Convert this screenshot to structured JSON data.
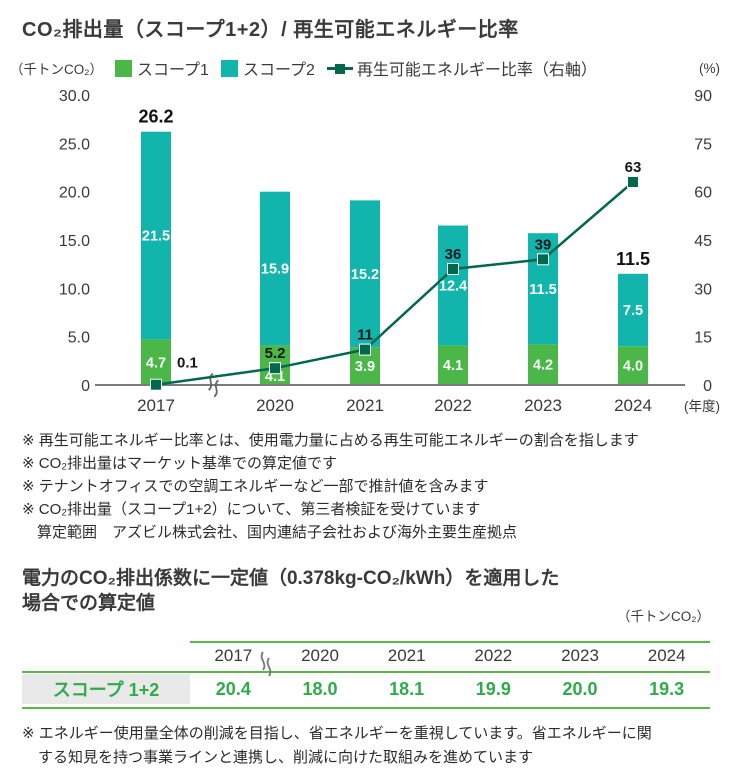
{
  "chart": {
    "title": "CO₂排出量（スコープ1+2）/ 再生可能エネルギー比率",
    "left_unit": "（千トンCO₂）",
    "right_unit": "(%)",
    "x_suffix": "(年度)"
  },
  "chart_data": {
    "type": "bar",
    "subtype": "stacked-bar-with-line",
    "title": "CO₂排出量（スコープ1+2）/ 再生可能エネルギー比率",
    "categories": [
      "2017",
      "2020",
      "2021",
      "2022",
      "2023",
      "2024"
    ],
    "x_axis_note": "(年度)",
    "axis_break_between": [
      "2017",
      "2020"
    ],
    "left_axis": {
      "unit": "（千トンCO₂）",
      "min": 0,
      "max": 30,
      "ticks": [
        "30.0",
        "25.0",
        "20.0",
        "15.0",
        "10.0",
        "5.0",
        "0"
      ]
    },
    "right_axis": {
      "unit": "(%)",
      "min": 0,
      "max": 90,
      "ticks": [
        "90",
        "75",
        "60",
        "45",
        "30",
        "15",
        "0"
      ]
    },
    "series": [
      {
        "name": "スコープ1",
        "type": "bar",
        "stack": true,
        "color": "#4bb748",
        "values": [
          4.7,
          4.1,
          3.9,
          4.1,
          4.2,
          4.0
        ],
        "labels": [
          "4.7",
          "4.1",
          "3.9",
          "4.1",
          "4.2",
          "4.0"
        ]
      },
      {
        "name": "スコープ2",
        "type": "bar",
        "stack": true,
        "color": "#12b5ab",
        "values": [
          21.5,
          15.9,
          15.2,
          12.4,
          11.5,
          7.5
        ],
        "labels": [
          "21.5",
          "15.9",
          "15.2",
          "12.4",
          "11.5",
          "7.5"
        ]
      },
      {
        "name": "再生可能エネルギー比率（右軸）",
        "type": "line",
        "axis": "right",
        "marker": "square",
        "color": "#00684d",
        "values": [
          0.1,
          5.2,
          11,
          36,
          39,
          63
        ],
        "labels": [
          "0.1",
          "5.2",
          "11",
          "36",
          "39",
          "63"
        ]
      }
    ],
    "total_labels": {
      "2017": "26.2",
      "2024": "11.5"
    },
    "legend_position": "top",
    "grid": false
  },
  "notes": [
    "※ 再生可能エネルギー比率とは、使用電力量に占める再生可能エネルギーの割合を指します",
    "※ CO₂排出量はマーケット基準での算定値です",
    "※ テナントオフィスでの空調エネルギーなど一部で推計値を含みます",
    "※ CO₂排出量（スコープ1+2）について、第三者検証を受けています",
    "算定範囲　アズビル株式会社、国内連結子会社および海外主要生産拠点"
  ],
  "section2": {
    "title_lines": [
      "電力のCO₂排出係数に一定値（0.378kg-CO₂/kWh）を適用した",
      "場合での算定値"
    ],
    "unit": "（千トンCO₂）",
    "table": {
      "years": [
        "2017",
        "2020",
        "2021",
        "2022",
        "2023",
        "2024"
      ],
      "row_label": "スコープ 1+2",
      "values": [
        "20.4",
        "18.0",
        "18.1",
        "19.9",
        "20.0",
        "19.3"
      ],
      "text_color": "#2fab49",
      "line_color": "#57ba4b",
      "label_bg": "#e9e9e9",
      "axis_break_between": [
        "2017",
        "2020"
      ]
    }
  },
  "footnote_lines": [
    "※ エネルギー使用量全体の削減を目指し、省エネルギーを重視しています。省エネルギーに関",
    "する知見を持つ事業ラインと連携し、削減に向けた取組みを進めています"
  ]
}
